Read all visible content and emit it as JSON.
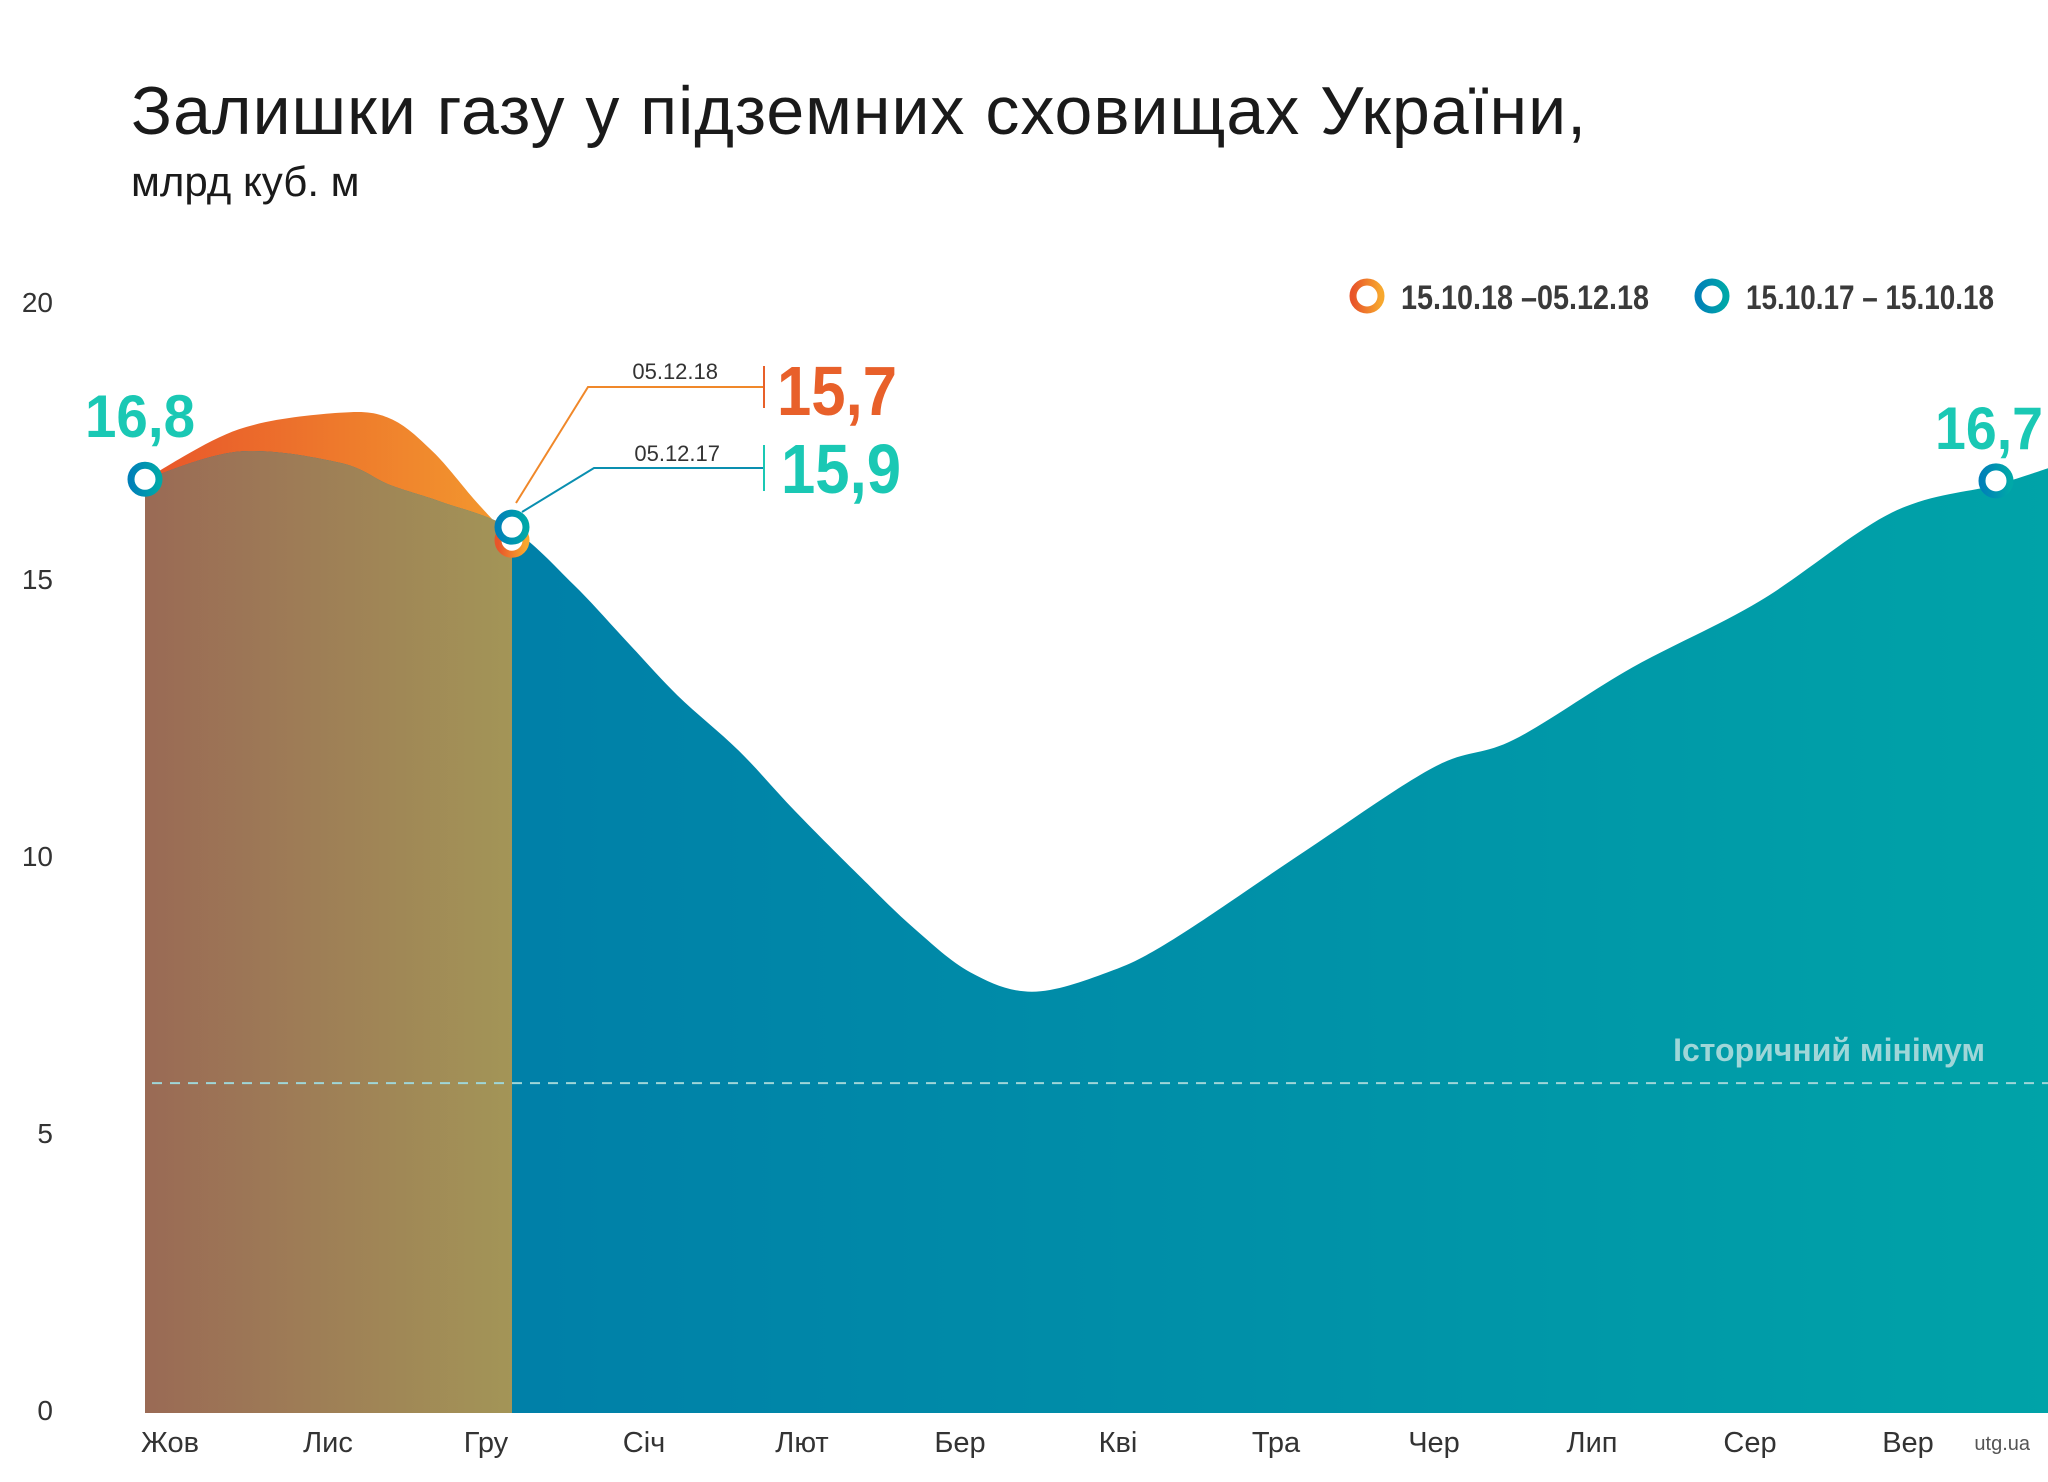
{
  "title": "Залишки газу у підземних сховищах України,",
  "subtitle": "млрд куб. м",
  "source": "utg.ua",
  "chart_data": {
    "type": "area",
    "yticks": [
      "0",
      "5",
      "10",
      "15",
      "20"
    ],
    "ylim": [
      0,
      20
    ],
    "xtick_labels": [
      "Жов",
      "Лис",
      "Гру",
      "Січ",
      "Лют",
      "Бер",
      "Кві",
      "Тра",
      "Чер",
      "Лип",
      "Сер",
      "Вер"
    ],
    "grid": false,
    "legend_placement": "top-right",
    "legend": [
      {
        "label": "15.10.18 –05.12.18",
        "color": "#ef7a2a"
      },
      {
        "label": "15.10.17 – 15.10.18",
        "color": "#0a93b0"
      }
    ],
    "series": [
      {
        "name": "15.10.17 – 15.10.18",
        "color_start": "#0077a8",
        "color_end": "#00a3a8",
        "points": [
          [
            "2017-10-15",
            16.8
          ],
          [
            "2017-10-28",
            17.3
          ],
          [
            "2017-11-11",
            17.1
          ],
          [
            "2017-11-18",
            16.7
          ],
          [
            "2017-11-25",
            16.4
          ],
          [
            "2017-12-05",
            15.9
          ],
          [
            "2017-12-18",
            14.9
          ],
          [
            "2017-12-29",
            13.9
          ],
          [
            "2018-01-09",
            12.9
          ],
          [
            "2018-01-22",
            11.9
          ],
          [
            "2018-02-03",
            10.8
          ],
          [
            "2018-02-17",
            9.6
          ],
          [
            "2018-02-28",
            8.7
          ],
          [
            "2018-03-12",
            7.9
          ],
          [
            "2018-03-25",
            7.55
          ],
          [
            "2018-04-10",
            7.9
          ],
          [
            "2018-04-24",
            8.5
          ],
          [
            "2018-05-22",
            10.1
          ],
          [
            "2018-06-18",
            11.6
          ],
          [
            "2018-07-05",
            12.1
          ],
          [
            "2018-07-30",
            13.4
          ],
          [
            "2018-08-26",
            14.6
          ],
          [
            "2018-09-23",
            16.2
          ],
          [
            "2018-10-15",
            16.7
          ],
          [
            "2018-10-26",
            17.0
          ]
        ]
      },
      {
        "name": "15.10.18 –05.12.18",
        "color_start": "#e8552a",
        "color_end": "#f39a2e",
        "points": [
          [
            "2018-10-15",
            16.8
          ],
          [
            "2018-10-28",
            17.7
          ],
          [
            "2018-11-11",
            18.0
          ],
          [
            "2018-11-18",
            17.9
          ],
          [
            "2018-11-24",
            17.3
          ],
          [
            "2018-11-30",
            16.4
          ],
          [
            "2018-12-05",
            15.7
          ]
        ]
      }
    ],
    "overlap_color_start": "#9a6a55",
    "overlap_color_end": "#a39557",
    "reference_line": {
      "label": "Історичний мінімум",
      "value": 5.9,
      "style": "dashed"
    },
    "annotations": {
      "start_value": "16,8",
      "end_value": "16,7",
      "current": {
        "date": "05.12.18",
        "value": "15,7",
        "color": "#e8602a"
      },
      "previous": {
        "date": "05.12.17",
        "value": "15,9",
        "color": "#1ac8b4"
      },
      "value_color": "#1ac8b4"
    }
  }
}
